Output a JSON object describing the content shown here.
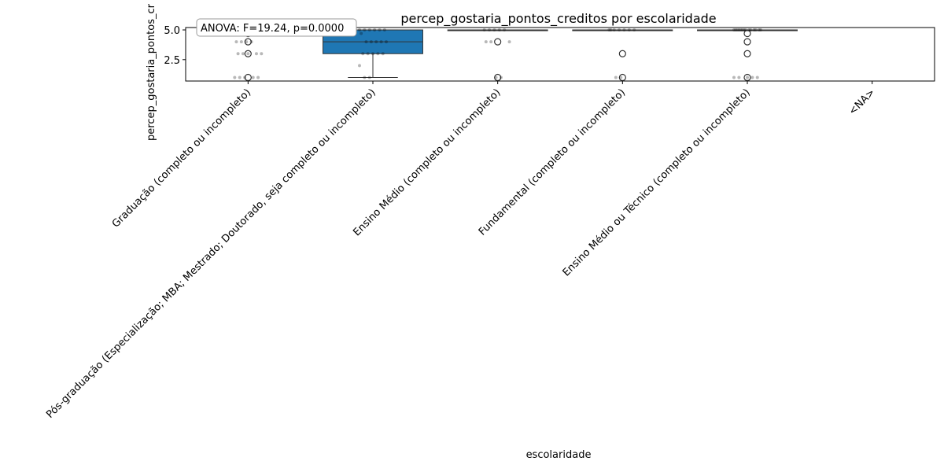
{
  "chart_data": {
    "type": "box",
    "title": "percep_gostaria_pontos_creditos por escolaridade",
    "xlabel": "escolaridade",
    "ylabel": "percep_gostaria_pontos_cr",
    "ylim": [
      0.7,
      5.2
    ],
    "yticks": [
      2.5,
      5.0
    ],
    "ytick_labels": [
      "2.5",
      "5.0"
    ],
    "grid": false,
    "annotation": "ANOVA: F=19.24, p=0.0000",
    "categories": [
      "Graduação (completo ou incompleto)",
      "Pós-graduação (Especialização; MBA; Mestrado; Doutorado, seja completo ou incompleto)",
      "Ensino Médio (completo ou incompleto)",
      "Fundamental (completo ou incompleto)",
      "Ensino Médio ou Técnico (completo ou incompleto)",
      "<NA>"
    ],
    "box_color": "#1f77b4",
    "boxes": [
      {
        "category": "Graduação (completo ou incompleto)",
        "whisker_low": 5.0,
        "q1": 5.0,
        "median": 5.0,
        "q3": 5.0,
        "whisker_high": 5.0,
        "outliers": [
          4.7,
          4.0,
          3.0,
          1.0
        ]
      },
      {
        "category": "Pós-graduação (Especialização; MBA; Mestrado; Doutorado, seja completo ou incompleto)",
        "whisker_low": 1.0,
        "q1": 3.0,
        "median": 4.0,
        "q3": 5.0,
        "whisker_high": 5.0,
        "outliers": []
      },
      {
        "category": "Ensino Médio (completo ou incompleto)",
        "whisker_low": 5.0,
        "q1": 5.0,
        "median": 5.0,
        "q3": 5.0,
        "whisker_high": 5.0,
        "outliers": [
          4.0,
          1.0
        ]
      },
      {
        "category": "Fundamental (completo ou incompleto)",
        "whisker_low": 5.0,
        "q1": 5.0,
        "median": 5.0,
        "q3": 5.0,
        "whisker_high": 5.0,
        "outliers": [
          3.0,
          1.0
        ]
      },
      {
        "category": "Ensino Médio ou Técnico (completo ou incompleto)",
        "whisker_low": 5.0,
        "q1": 5.0,
        "median": 5.0,
        "q3": 5.0,
        "whisker_high": 5.0,
        "outliers": [
          4.7,
          4.0,
          3.0,
          1.0
        ]
      },
      {
        "category": "<NA>",
        "empty": true
      }
    ],
    "strip_points": [
      {
        "category": "Graduação (completo ou incompleto)",
        "values": [
          5,
          5,
          5,
          5,
          5,
          5,
          4,
          4,
          4,
          4,
          3,
          3,
          3,
          3,
          3,
          1,
          1,
          1,
          1,
          1
        ]
      },
      {
        "category": "Pós-graduação (Especialização; MBA; Mestrado; Doutorado, seja completo ou incompleto)",
        "values": [
          5,
          5,
          5,
          5,
          5,
          5,
          4.7,
          4,
          4,
          4,
          4,
          4,
          3,
          3,
          3,
          3,
          3,
          2,
          1,
          1
        ]
      },
      {
        "category": "Ensino Médio (completo ou incompleto)",
        "values": [
          5,
          5,
          5,
          5,
          5,
          4,
          4,
          4,
          1,
          1
        ]
      },
      {
        "category": "Fundamental (completo ou incompleto)",
        "values": [
          5,
          5,
          5,
          5,
          5,
          5,
          5,
          1,
          1
        ]
      },
      {
        "category": "Ensino Médio ou Técnico (completo ou incompleto)",
        "values": [
          5,
          5,
          5,
          5,
          5,
          5,
          5,
          5,
          5,
          5,
          5,
          5,
          5,
          5,
          1,
          1,
          1,
          1,
          1
        ]
      }
    ]
  }
}
